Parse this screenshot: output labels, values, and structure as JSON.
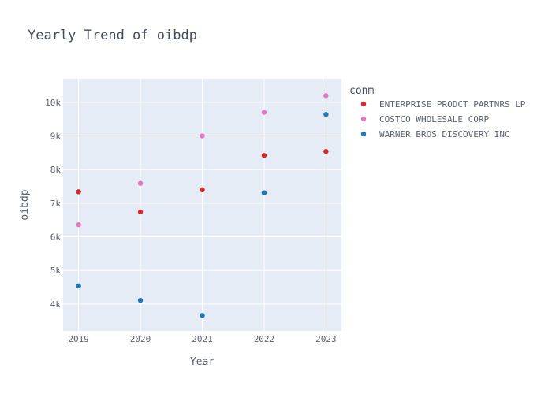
{
  "chart_data": {
    "type": "scatter",
    "title": "Yearly Trend of oibdp",
    "xlabel": "Year",
    "ylabel": "oibdp",
    "x": [
      2019,
      2020,
      2021,
      2022,
      2023
    ],
    "x_ticks": [
      "2019",
      "2020",
      "2021",
      "2022",
      "2023"
    ],
    "xlim": [
      2018.75,
      2023.25
    ],
    "ylim": [
      3200,
      10700
    ],
    "y_ticks": [
      {
        "value": 4000,
        "label": "4k"
      },
      {
        "value": 5000,
        "label": "5k"
      },
      {
        "value": 6000,
        "label": "6k"
      },
      {
        "value": 7000,
        "label": "7k"
      },
      {
        "value": 8000,
        "label": "8k"
      },
      {
        "value": 9000,
        "label": "9k"
      },
      {
        "value": 10000,
        "label": "10k"
      }
    ],
    "grid": true,
    "legend": {
      "title": "conm",
      "position": "top-right"
    },
    "series": [
      {
        "name": "ENTERPRISE PRODCT PARTNRS LP",
        "color": "#d62728",
        "values": [
          7340,
          6740,
          7400,
          8420,
          8540
        ]
      },
      {
        "name": "COSTCO WHOLESALE CORP",
        "color": "#e377c2",
        "values": [
          6360,
          7590,
          9000,
          9700,
          10200
        ]
      },
      {
        "name": "WARNER BROS DISCOVERY INC",
        "color": "#1f77b4",
        "values": [
          4540,
          4110,
          3660,
          7310,
          9640
        ]
      }
    ]
  }
}
